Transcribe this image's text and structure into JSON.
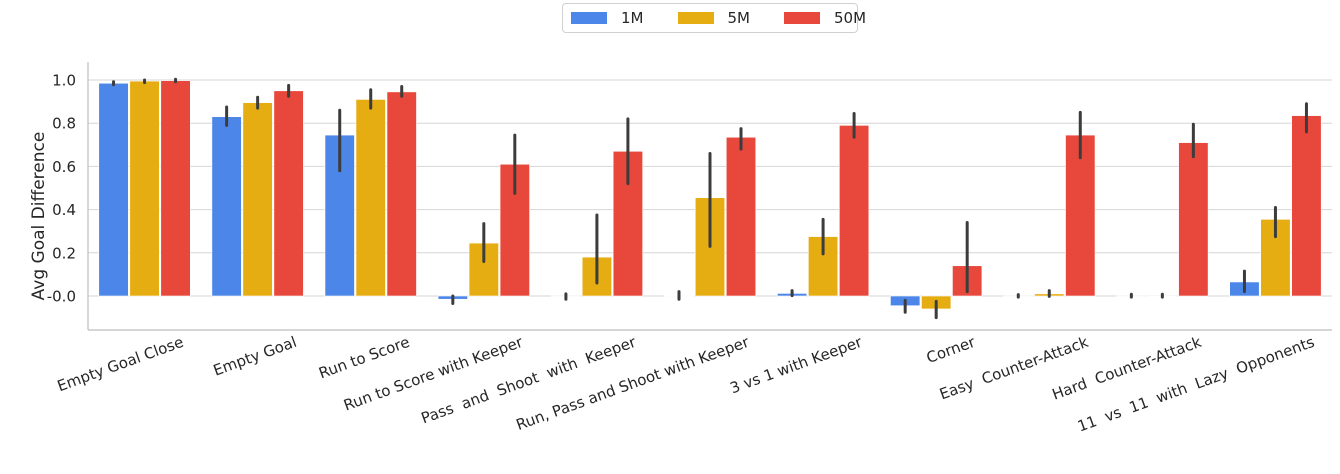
{
  "chart_data": {
    "type": "bar",
    "ylabel": "Avg Goal Difference",
    "xlabel": "",
    "ylim": [
      -0.15,
      1.06
    ],
    "yticks": [
      "-0.0",
      "0.2",
      "0.4",
      "0.6",
      "0.8",
      "1.0"
    ],
    "grid": "horizontal",
    "legend_position": "top-center",
    "categories": [
      "Empty Goal Close",
      "Empty Goal",
      "Run to Score",
      "Run to Score with Keeper",
      "Pass  and  Shoot  with  Keeper",
      "Run, Pass and Shoot with Keeper",
      "3 vs 1 with Keeper",
      "Corner",
      "Easy  Counter-Attack",
      "Hard  Counter-Attack",
      "11  vs  11  with  Lazy  Opponents"
    ],
    "series": [
      {
        "name": "1M",
        "color": "#4c86e8",
        "values": [
          0.985,
          0.83,
          0.745,
          -0.015,
          0.0,
          0.002,
          0.012,
          -0.045,
          0.0,
          0.0,
          0.065
        ],
        "err_low": [
          0.978,
          0.79,
          0.58,
          -0.035,
          -0.015,
          -0.015,
          0.002,
          -0.075,
          -0.005,
          -0.005,
          0.02
        ],
        "err_high": [
          0.992,
          0.875,
          0.86,
          0.0,
          0.01,
          0.02,
          0.025,
          -0.02,
          0.005,
          0.008,
          0.115
        ]
      },
      {
        "name": "5M",
        "color": "#e6ad12",
        "values": [
          0.995,
          0.895,
          0.91,
          0.245,
          0.18,
          0.455,
          0.275,
          -0.06,
          0.01,
          0.0,
          0.355
        ],
        "err_low": [
          0.988,
          0.87,
          0.87,
          0.16,
          0.06,
          0.23,
          0.195,
          -0.1,
          -0.002,
          -0.005,
          0.275
        ],
        "err_high": [
          1.0,
          0.92,
          0.955,
          0.335,
          0.375,
          0.66,
          0.355,
          -0.025,
          0.025,
          0.008,
          0.41
        ]
      },
      {
        "name": "50M",
        "color": "#e8483b",
        "values": [
          0.997,
          0.95,
          0.945,
          0.61,
          0.67,
          0.735,
          0.79,
          0.14,
          0.745,
          0.71,
          0.835
        ],
        "err_low": [
          0.992,
          0.925,
          0.925,
          0.475,
          0.52,
          0.68,
          0.735,
          0.02,
          0.64,
          0.645,
          0.76
        ],
        "err_high": [
          1.0,
          0.975,
          0.97,
          0.745,
          0.82,
          0.775,
          0.845,
          0.34,
          0.85,
          0.795,
          0.89
        ]
      }
    ]
  }
}
